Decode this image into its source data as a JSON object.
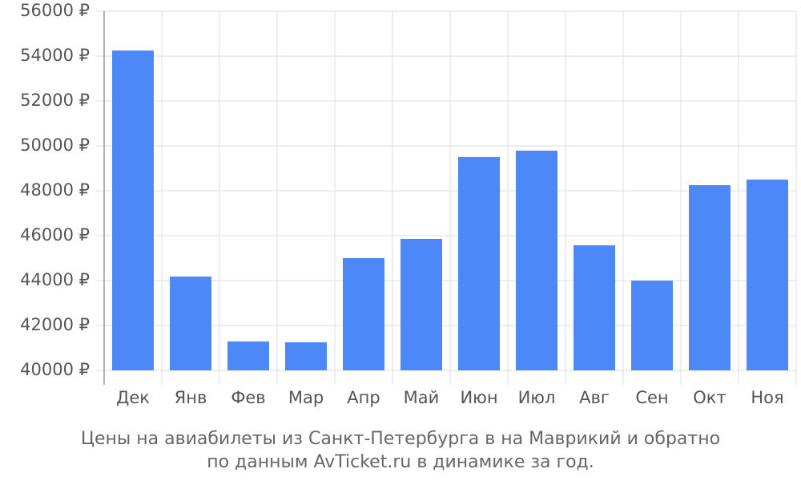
{
  "chart_data": {
    "type": "bar",
    "caption": [
      "Цены на авиабилеты из Санкт-Петербурга в на Маврикий и обратно",
      "по данным AvTicket.ru в динамике за год."
    ],
    "categories": [
      "Дек",
      "Янв",
      "Фев",
      "Мар",
      "Апр",
      "Май",
      "Июн",
      "Июл",
      "Авг",
      "Сен",
      "Окт",
      "Ноя"
    ],
    "values": [
      54250,
      44180,
      41290,
      41250,
      45000,
      45860,
      49500,
      49790,
      45570,
      44000,
      48250,
      48500
    ],
    "color": "#4d88f8",
    "ylim": [
      40000,
      56000
    ],
    "yticks": [
      {
        "value": 40000,
        "label": "40000 ₽"
      },
      {
        "value": 42000,
        "label": "42000 ₽"
      },
      {
        "value": 44000,
        "label": "44000 ₽"
      },
      {
        "value": 46000,
        "label": "46000 ₽"
      },
      {
        "value": 48000,
        "label": "48000 ₽"
      },
      {
        "value": 50000,
        "label": "50000 ₽"
      },
      {
        "value": 52000,
        "label": "52000 ₽"
      },
      {
        "value": 54000,
        "label": "54000 ₽"
      },
      {
        "value": 56000,
        "label": "56000 ₽"
      }
    ],
    "grid": true
  }
}
